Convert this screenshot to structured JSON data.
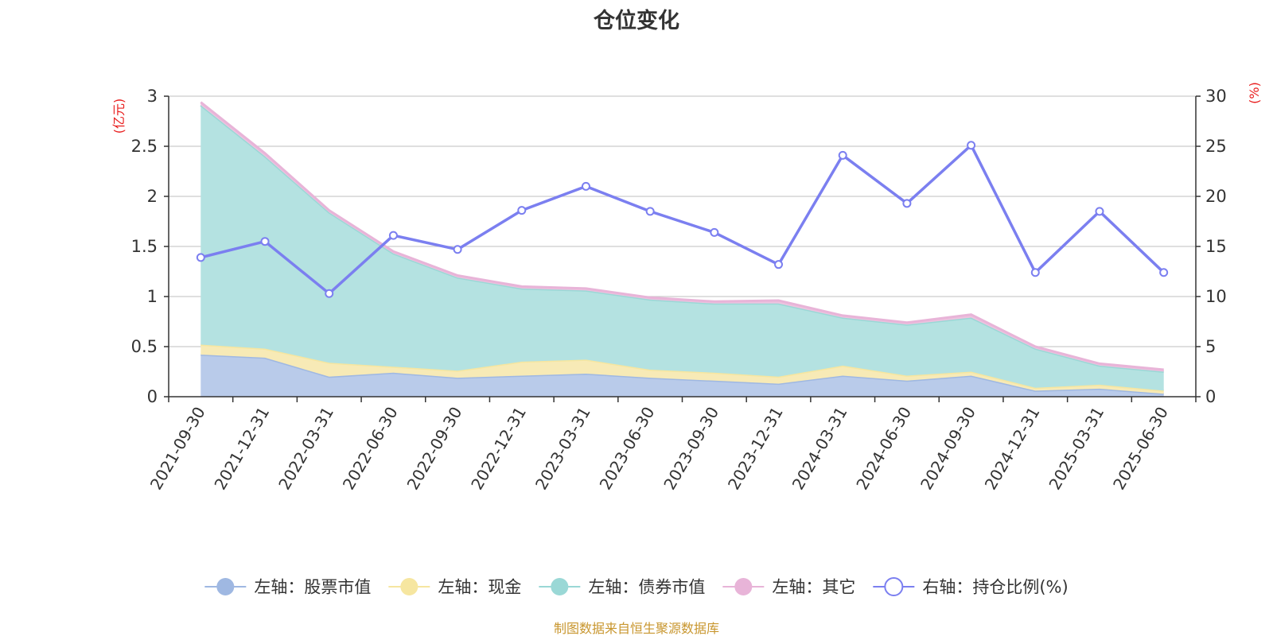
{
  "chart_data": {
    "type": "area",
    "title": "仓位变化",
    "left_axis_unit": "(亿元)",
    "right_axis_unit": "(%)",
    "ylim_left": [
      0,
      3
    ],
    "ylim_right": [
      0,
      30
    ],
    "yticks_left": [
      "0",
      "0.5",
      "1",
      "1.5",
      "2",
      "2.5",
      "3"
    ],
    "yticks_right": [
      "0",
      "5",
      "10",
      "15",
      "20",
      "25",
      "30"
    ],
    "grid": true,
    "legend_position": "bottom",
    "categories": [
      "2021-09-30",
      "2021-12-31",
      "2022-03-31",
      "2022-06-30",
      "2022-09-30",
      "2022-12-31",
      "2023-03-31",
      "2023-06-30",
      "2023-09-30",
      "2023-12-31",
      "2024-03-31",
      "2024-06-30",
      "2024-09-30",
      "2024-12-31",
      "2025-03-31",
      "2025-06-30"
    ],
    "stacked_series": [
      {
        "name": "左轴：股票市值",
        "color": "#9fb8e2",
        "fill": "#b9cbea",
        "values": [
          0.42,
          0.39,
          0.2,
          0.24,
          0.19,
          0.21,
          0.23,
          0.19,
          0.16,
          0.13,
          0.21,
          0.16,
          0.21,
          0.06,
          0.08,
          0.03
        ]
      },
      {
        "name": "左轴：现金",
        "color": "#f6e6a0",
        "fill": "#f7eab6",
        "values": [
          0.1,
          0.09,
          0.14,
          0.06,
          0.07,
          0.14,
          0.14,
          0.08,
          0.08,
          0.07,
          0.1,
          0.05,
          0.04,
          0.03,
          0.04,
          0.03
        ]
      },
      {
        "name": "左轴：债券市值",
        "color": "#9ad8d6",
        "fill": "#b4e2e1",
        "values": [
          2.39,
          1.92,
          1.5,
          1.13,
          0.93,
          0.73,
          0.69,
          0.7,
          0.69,
          0.73,
          0.48,
          0.51,
          0.54,
          0.39,
          0.19,
          0.19
        ]
      },
      {
        "name": "左轴：其它",
        "color": "#e8b4d8",
        "fill": "#edc3df",
        "values": [
          0.03,
          0.03,
          0.02,
          0.02,
          0.02,
          0.02,
          0.02,
          0.02,
          0.02,
          0.03,
          0.02,
          0.02,
          0.03,
          0.02,
          0.02,
          0.02
        ]
      }
    ],
    "line_series": {
      "name": "右轴：持仓比例(%)",
      "color": "#7b7ff0",
      "values": [
        13.9,
        15.5,
        10.3,
        16.1,
        14.7,
        18.6,
        21.0,
        18.5,
        16.4,
        13.2,
        24.1,
        19.3,
        25.1,
        12.4,
        18.5,
        12.4
      ]
    }
  },
  "source_note": "制图数据来自恒生聚源数据库"
}
